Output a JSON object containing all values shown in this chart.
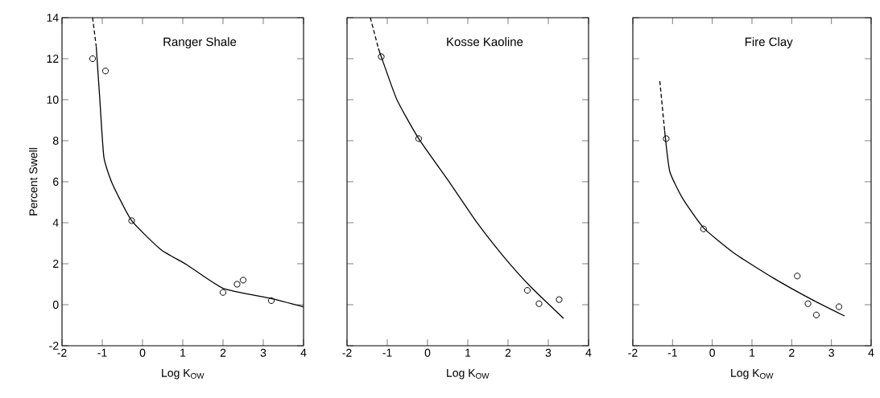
{
  "chart_data": [
    {
      "type": "scatter",
      "title": "Ranger Shale",
      "xlabel": "Log K$_{OW}$",
      "ylabel": "Percent Swell",
      "xlim": [
        -2,
        4
      ],
      "ylim": [
        -2,
        14
      ],
      "xticks": [
        -2,
        -1,
        0,
        1,
        2,
        3,
        4
      ],
      "yticks": [
        -2,
        0,
        2,
        4,
        6,
        8,
        10,
        12,
        14
      ],
      "series": [
        {
          "marker": "circle",
          "color": "#000000",
          "x": [
            -1.24,
            -0.92,
            -0.27,
            2.0,
            2.35,
            2.5,
            3.2
          ],
          "values": [
            12.0,
            11.4,
            4.1,
            0.6,
            1.0,
            1.2,
            0.2
          ]
        },
        {
          "type": "line",
          "line_style": "solid",
          "color": "#000000",
          "x": [
            -1.15,
            -1.06,
            -0.96,
            -0.75,
            -0.27,
            0.45,
            1.1,
            2.0,
            3.2,
            4.0
          ],
          "values": [
            12.6,
            10.0,
            7.2,
            5.9,
            4.1,
            2.7,
            1.95,
            0.8,
            0.3,
            -0.1
          ]
        },
        {
          "type": "line",
          "line_style": "dashed",
          "color": "#000000",
          "x": [
            -1.24,
            -1.15
          ],
          "values": [
            14.0,
            12.6
          ]
        }
      ]
    },
    {
      "type": "scatter",
      "title": "Kosse Kaoline",
      "xlabel": "Log K$_{OW}$",
      "xlim": [
        -2,
        4
      ],
      "ylim": [
        -2,
        14
      ],
      "xticks": [
        -2,
        -1,
        0,
        1,
        2,
        3,
        4
      ],
      "yticks": [
        -2,
        0,
        2,
        4,
        6,
        8,
        10,
        12,
        14
      ],
      "tick_labels": "x",
      "series": [
        {
          "marker": "circle",
          "color": "#000000",
          "x": [
            -1.15,
            -0.22,
            2.48,
            2.77,
            3.27
          ],
          "values": [
            12.1,
            8.1,
            0.7,
            0.05,
            0.25
          ]
        },
        {
          "type": "line",
          "line_style": "solid",
          "color": "#000000",
          "x": [
            -1.22,
            -1.15,
            -0.76,
            -0.22,
            0.57,
            1.23,
            1.89,
            2.55,
            3.38
          ],
          "values": [
            12.5,
            12.1,
            10.0,
            8.1,
            5.9,
            4.0,
            2.35,
            0.9,
            -0.67
          ]
        },
        {
          "type": "line",
          "line_style": "dashed",
          "color": "#000000",
          "x": [
            -1.42,
            -1.22
          ],
          "values": [
            14.0,
            12.5
          ]
        }
      ]
    },
    {
      "type": "scatter",
      "title": "Fire Clay",
      "xlabel": "Log K$_{OW}$",
      "xlim": [
        -2,
        4
      ],
      "ylim": [
        -2,
        14
      ],
      "xticks": [
        -2,
        -1,
        0,
        1,
        2,
        3,
        4
      ],
      "yticks": [
        -2,
        0,
        2,
        4,
        6,
        8,
        10,
        12,
        14
      ],
      "tick_labels": "x",
      "series": [
        {
          "marker": "circle",
          "color": "#000000",
          "x": [
            -1.16,
            -0.22,
            2.14,
            2.41,
            2.62,
            3.19
          ],
          "values": [
            8.1,
            3.7,
            1.4,
            0.05,
            -0.5,
            -0.1
          ]
        },
        {
          "type": "line",
          "line_style": "solid",
          "color": "#000000",
          "x": [
            -1.2,
            -1.07,
            -0.75,
            -0.22,
            0.56,
            1.54,
            2.51,
            3.33
          ],
          "values": [
            8.5,
            6.5,
            5.2,
            3.75,
            2.5,
            1.3,
            0.25,
            -0.55
          ]
        },
        {
          "type": "line",
          "line_style": "dashed",
          "color": "#000000",
          "x": [
            -1.32,
            -1.2
          ],
          "values": [
            10.9,
            8.5
          ]
        }
      ]
    }
  ]
}
